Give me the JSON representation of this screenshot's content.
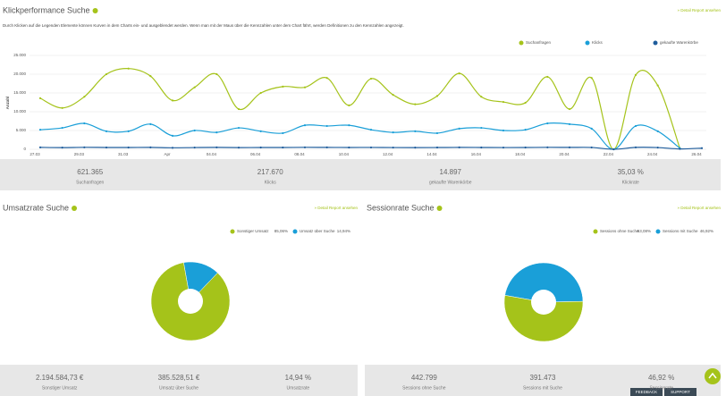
{
  "chart_data": [
    {
      "type": "line",
      "title": "Klickperformance Suche",
      "link": "» Detail Report ansehen",
      "subtitle": "Durch Klicken auf die Legenden Elemente können Kurven in dem Charts ein- und ausgeblendet werden. Wenn man mit der Maus über die Kennzahlen unter dem Chart fährt, werden Definitionen zu den Kennzahlen angezeigt.",
      "y_label": "Anzahl",
      "categories": [
        "27.03",
        null,
        "29.03",
        null,
        "31.03",
        null,
        "Apr",
        null,
        "04.04",
        null,
        "06.04",
        null,
        "08.04",
        null,
        "10.04",
        null,
        "12.04",
        null,
        "14.04",
        null,
        "16.04",
        null,
        "18.04",
        null,
        "20.04",
        null,
        "22.04",
        null,
        "24.04",
        null,
        "26.04"
      ],
      "series": [
        {
          "name": "Suchanfragen",
          "color": "#a5c31a",
          "values": [
            13600,
            11000,
            14000,
            20000,
            21500,
            19500,
            13000,
            16500,
            20000,
            10700,
            15000,
            16700,
            16500,
            19000,
            11700,
            18800,
            14500,
            12000,
            14200,
            20200,
            14000,
            12600,
            12400,
            19300,
            10700,
            19000,
            0,
            19800,
            17000,
            300,
            null
          ]
        },
        {
          "name": "Klicks",
          "color": "#1a9fd8",
          "values": [
            5200,
            5700,
            6900,
            4800,
            4800,
            6700,
            3600,
            5000,
            4500,
            5700,
            4800,
            4300,
            6400,
            6200,
            6400,
            5200,
            4500,
            4800,
            4300,
            5500,
            5700,
            5000,
            5200,
            6900,
            6700,
            5500,
            0,
            6200,
            4800,
            300,
            null
          ]
        },
        {
          "name": "gekaufte Warenkörbe",
          "color": "#1f5d9c",
          "values": [
            500,
            450,
            520,
            480,
            470,
            510,
            400,
            460,
            500,
            450,
            480,
            470,
            520,
            500,
            480,
            490,
            460,
            450,
            470,
            500,
            480,
            460,
            470,
            520,
            500,
            490,
            0,
            500,
            460,
            100,
            300
          ]
        }
      ],
      "ylim": [
        0,
        25000
      ],
      "yticks": [
        0,
        {
          "value": 5000,
          "label": "5.000"
        },
        {
          "value": 10000,
          "label": "10.000"
        },
        {
          "value": 15000,
          "label": "15.000"
        },
        {
          "value": 20000,
          "label": "20.000"
        },
        {
          "value": 25000,
          "label": "25.000"
        }
      ],
      "grid": true,
      "legend": "top-right"
    },
    {
      "type": "pie",
      "title": "Umsatzrate Suche",
      "link": "» Detail Report ansehen",
      "categories": [
        "Sonstiger Umsatz",
        "Umsatz über Suche"
      ],
      "values": [
        85.06,
        14.94
      ],
      "value_labels": [
        "85,06%",
        "14,94%"
      ],
      "colors": [
        "#a5c31a",
        "#1a9fd8"
      ],
      "legend": "top-right"
    },
    {
      "type": "pie",
      "title": "Sessionrate Suche",
      "link": "» Detail Report ansehen",
      "categories": [
        "Sessions ohne Suche",
        "Sessions mit Suche"
      ],
      "values": [
        53.08,
        46.92
      ],
      "value_labels": [
        "53,08%",
        "46,92%"
      ],
      "colors": [
        "#a5c31a",
        "#1a9fd8"
      ],
      "legend": "top-right"
    }
  ],
  "kpis": [
    [
      {
        "value": "621.365",
        "label": "Suchanfragen"
      },
      {
        "value": "217.670",
        "label": "Klicks"
      },
      {
        "value": "14.897",
        "label": "gekaufte Warenkörbe"
      },
      {
        "value": "35,03 %",
        "label": "Klickrate"
      }
    ],
    [
      {
        "value": "2.194.584,73 €",
        "label": "Sonstiger Umsatz"
      },
      {
        "value": "385.528,51 €",
        "label": "Umsatz über Suche"
      },
      {
        "value": "14,94 %",
        "label": "Umsatzrate"
      }
    ],
    [
      {
        "value": "442.799",
        "label": "Sessions ohne Suche"
      },
      {
        "value": "391.473",
        "label": "Sessions mit Suche"
      },
      {
        "value": "46,92 %",
        "label": "Sessionrate"
      }
    ]
  ],
  "buttons": [
    "FEEDBACK",
    "SUPPORT"
  ]
}
